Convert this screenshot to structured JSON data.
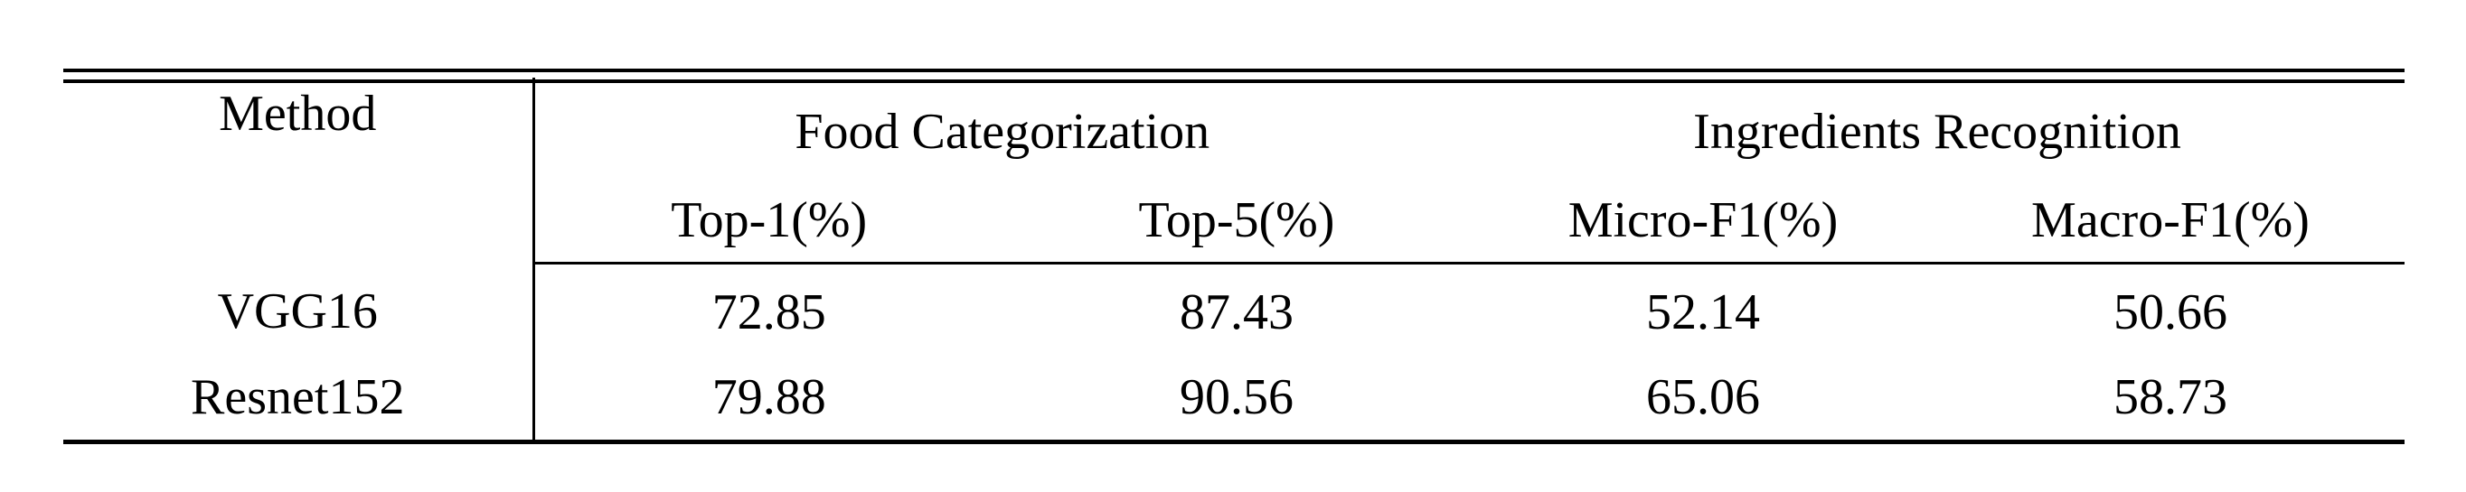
{
  "table": {
    "headers": {
      "method": "Method",
      "group1": "Food Categorization",
      "group2": "Ingredients Recognition",
      "sub": [
        "Top-1(%)",
        "Top-5(%)",
        "Micro-F1(%)",
        "Macro-F1(%)"
      ]
    },
    "rows": [
      {
        "method": "VGG16",
        "values": [
          "72.85",
          "87.43",
          "52.14",
          "50.66"
        ]
      },
      {
        "method": "Resnet152",
        "values": [
          "79.88",
          "90.56",
          "65.06",
          "58.73"
        ]
      }
    ]
  }
}
